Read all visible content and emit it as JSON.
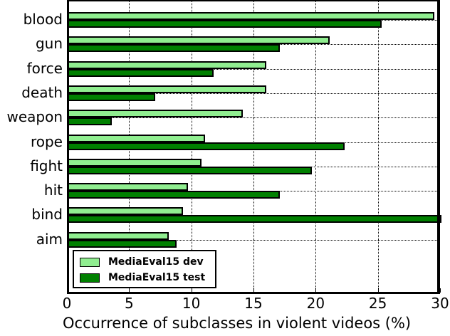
{
  "chart_data": {
    "type": "bar",
    "orientation": "horizontal",
    "title": "",
    "xlabel": "Occurrence of subclasses in violent videos (%)",
    "ylabel": "",
    "xlim": [
      0,
      30
    ],
    "xticks": [
      "0",
      "5",
      "10",
      "15",
      "20",
      "25",
      "30"
    ],
    "grid": true,
    "legend_position": "lower left",
    "categories": [
      "blood",
      "gun",
      "force",
      "death",
      "weapon",
      "rope",
      "fight",
      "hit",
      "bind",
      "aim"
    ],
    "series": [
      {
        "name": "MediaEval15 dev",
        "color": "#90ee90",
        "values": [
          29.4,
          21.0,
          15.9,
          15.9,
          14.0,
          11.0,
          10.7,
          9.6,
          9.2,
          8.1
        ]
      },
      {
        "name": "MediaEval15 test",
        "color": "#008000",
        "values": [
          25.2,
          17.0,
          11.7,
          7.0,
          3.5,
          22.2,
          19.6,
          17.0,
          30.0,
          8.7
        ]
      }
    ]
  },
  "legend": {
    "items": [
      {
        "label": "MediaEval15 dev",
        "color": "#90ee90"
      },
      {
        "label": "MediaEval15 test",
        "color": "#008000"
      }
    ]
  }
}
